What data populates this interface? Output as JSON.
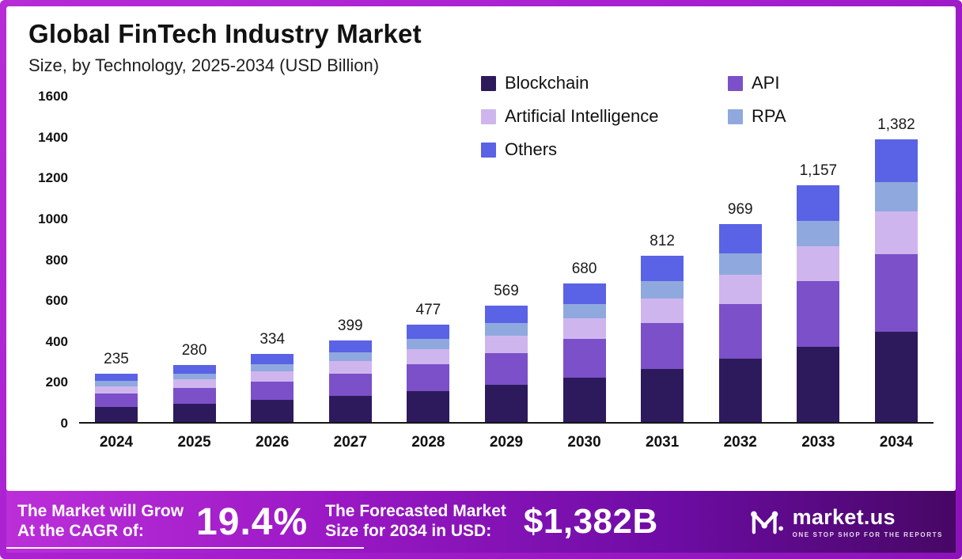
{
  "header": {
    "title": "Global FinTech Industry Market",
    "subtitle": "Size, by Technology, 2025-2034 (USD Billion)"
  },
  "chart_data": {
    "type": "bar",
    "subtype": "stacked",
    "categories": [
      "2024",
      "2025",
      "2026",
      "2027",
      "2028",
      "2029",
      "2030",
      "2031",
      "2032",
      "2033",
      "2034"
    ],
    "totals": [
      235,
      280,
      334,
      399,
      477,
      569,
      680,
      812,
      969,
      1157,
      1382
    ],
    "total_labels": [
      "235",
      "280",
      "334",
      "399",
      "477",
      "569",
      "680",
      "812",
      "969",
      "1,157",
      "1,382"
    ],
    "series": [
      {
        "name": "Blockchain",
        "color": "#2d1a5c",
        "values": [
          75,
          90,
          107,
          128,
          153,
          182,
          218,
          260,
          310,
          370,
          442
        ]
      },
      {
        "name": "API",
        "color": "#7b50c8",
        "values": [
          65,
          77,
          92,
          110,
          131,
          156,
          187,
          223,
          267,
          318,
          380
        ]
      },
      {
        "name": "Artificial Intelligence",
        "color": "#cfb5ee",
        "values": [
          35,
          42,
          50,
          60,
          71,
          85,
          102,
          122,
          145,
          174,
          207
        ]
      },
      {
        "name": "RPA",
        "color": "#8fa9de",
        "values": [
          25,
          29,
          35,
          42,
          50,
          60,
          71,
          85,
          102,
          121,
          145
        ]
      },
      {
        "name": "Others",
        "color": "#5a62e6",
        "values": [
          35,
          42,
          50,
          59,
          72,
          86,
          102,
          122,
          145,
          174,
          208
        ]
      }
    ],
    "title": "Global FinTech Industry Market Size, by Technology, 2025-2034 (USD Billion)",
    "xlabel": "",
    "ylabel": "",
    "ylim": [
      0,
      1600
    ],
    "yticks": [
      0,
      200,
      400,
      600,
      800,
      1000,
      1200,
      1400,
      1600
    ],
    "grid": false,
    "legend_position": "top-right"
  },
  "banner": {
    "cagr_label_line1": "The Market will Grow",
    "cagr_label_line2": "At the CAGR of:",
    "cagr_value": "19.4%",
    "forecast_label_line1": "The Forecasted Market",
    "forecast_label_line2": "Size for 2034 in USD:",
    "forecast_value": "$1,382B",
    "brand_name": "market.us",
    "brand_tagline": "ONE STOP SHOP FOR THE REPORTS"
  },
  "colors": {
    "frame_purple": "#a81fd0",
    "banner_gradient_start": "#bb2fd9",
    "banner_gradient_end": "#470765",
    "axis_line": "#161616"
  }
}
